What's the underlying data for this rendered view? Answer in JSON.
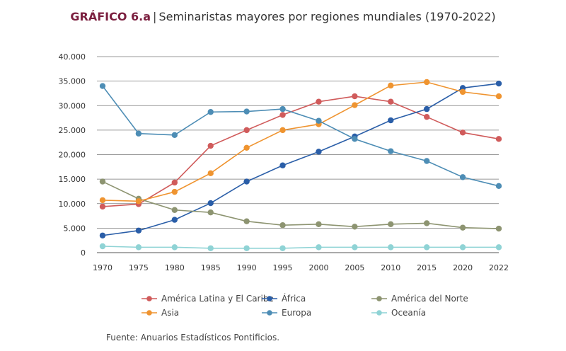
{
  "header": {
    "label": "GRÁFICO 6.a",
    "separator": "|",
    "text": "Seminaristas mayores por regiones mundiales  (1970-2022)"
  },
  "source": "Fuente: Anuarios Estadísticos Pontificios.",
  "chart_data": {
    "type": "line",
    "title": "Seminaristas mayores por regiones mundiales (1970-2022)",
    "xlabel": "",
    "ylabel": "",
    "categories": [
      "1970",
      "1975",
      "1980",
      "1985",
      "1990",
      "1995",
      "2000",
      "2005",
      "2010",
      "2015",
      "2020",
      "2022"
    ],
    "ylim": [
      0,
      40000
    ],
    "yticks": [
      0,
      5000,
      10000,
      15000,
      20000,
      25000,
      30000,
      35000,
      40000
    ],
    "ytick_labels": [
      "0",
      "5.000",
      "10.000",
      "15.000",
      "20.000",
      "25.000",
      "30.000",
      "35.000",
      "40.000"
    ],
    "grid": "horizontal",
    "legend_position": "bottom",
    "series": [
      {
        "name": "América Latina y El Caribe",
        "color": "#d05b5b",
        "values": [
          9400,
          9900,
          14300,
          21800,
          25000,
          28100,
          30800,
          31900,
          30800,
          27700,
          24500,
          23200
        ]
      },
      {
        "name": "África",
        "color": "#2a5ea8",
        "values": [
          3500,
          4500,
          6700,
          10100,
          14500,
          17800,
          20600,
          23700,
          27000,
          29300,
          33600,
          34500
        ]
      },
      {
        "name": "América del Norte",
        "color": "#8d9471",
        "values": [
          14500,
          11000,
          8700,
          8200,
          6400,
          5600,
          5800,
          5300,
          5800,
          6000,
          5100,
          4900
        ]
      },
      {
        "name": "Asia",
        "color": "#ef9430",
        "values": [
          10700,
          10500,
          12400,
          16200,
          21400,
          25000,
          26200,
          30100,
          34100,
          34800,
          32800,
          31900
        ]
      },
      {
        "name": "Europa",
        "color": "#4d8db5",
        "values": [
          34000,
          24300,
          24000,
          28700,
          28800,
          29300,
          26900,
          23200,
          20700,
          18700,
          15400,
          13600
        ]
      },
      {
        "name": "Oceanía",
        "color": "#8fd3d5",
        "values": [
          1300,
          1100,
          1100,
          900,
          900,
          900,
          1100,
          1100,
          1100,
          1100,
          1100,
          1100
        ]
      }
    ]
  }
}
